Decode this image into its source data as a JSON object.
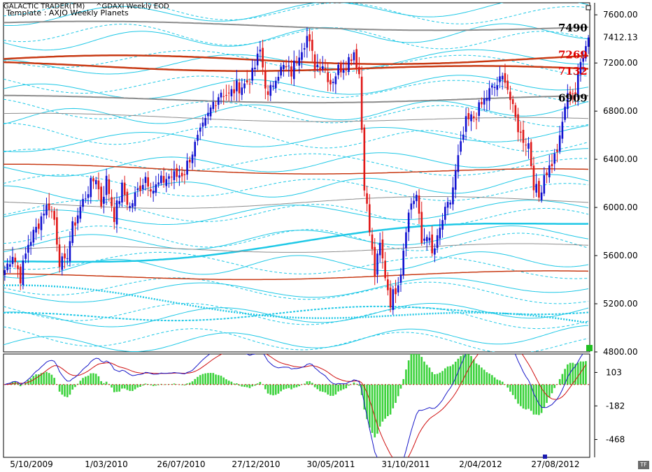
{
  "header": {
    "app_name": "GALACTIC TRADER(TM)",
    "symbol": "^GDAXI Weekly EOD",
    "template": "Template : AXJO Weekly Planets"
  },
  "tf_badge": "TF",
  "colors": {
    "up_candle": "#1010d0",
    "down_candle": "#e01818",
    "planet_cyan": "#1ec8e6",
    "planet_red": "#c83a14",
    "planet_gray": "#8c8c8c",
    "macd_line": "#1818c8",
    "signal_line": "#d01010",
    "histogram": "#3cd23c",
    "marker": "#20c020"
  },
  "levels": [
    {
      "value": 7490,
      "label": "7490",
      "color": "#000000"
    },
    {
      "value": 7269,
      "label": "7269",
      "color": "#e00000"
    },
    {
      "value": 7132,
      "label": "7132",
      "color": "#e00000"
    },
    {
      "value": 6909,
      "label": "6909",
      "color": "#000000"
    }
  ],
  "last_price": "7412.13",
  "chart_data": [
    {
      "type": "candlestick",
      "panel": "price",
      "y_ticks": [
        "7600.00",
        "7200.00",
        "6800.00",
        "6400.00",
        "6000.00",
        "5600.00",
        "5200.00",
        "4800.00"
      ],
      "ylim": [
        4800,
        7700
      ],
      "x_ticks": [
        "5/10/2009",
        "1/03/2010",
        "26/07/2010",
        "27/12/2010",
        "30/05/2011",
        "31/10/2011",
        "2/04/2012",
        "27/08/2012"
      ],
      "waypoints": [
        [
          0,
          5480
        ],
        [
          3,
          5620
        ],
        [
          6,
          5420
        ],
        [
          9,
          5700
        ],
        [
          12,
          5820
        ],
        [
          15,
          5980
        ],
        [
          17,
          6020
        ],
        [
          19,
          5900
        ],
        [
          21,
          5560
        ],
        [
          23,
          5520
        ],
        [
          26,
          5830
        ],
        [
          29,
          6000
        ],
        [
          32,
          6150
        ],
        [
          35,
          6260
        ],
        [
          37,
          6030
        ],
        [
          39,
          6230
        ],
        [
          42,
          5930
        ],
        [
          45,
          6160
        ],
        [
          48,
          6000
        ],
        [
          51,
          6140
        ],
        [
          54,
          6260
        ],
        [
          57,
          6150
        ],
        [
          60,
          6210
        ],
        [
          63,
          6260
        ],
        [
          66,
          6260
        ],
        [
          69,
          6300
        ],
        [
          71,
          6420
        ],
        [
          74,
          6560
        ],
        [
          77,
          6700
        ],
        [
          80,
          6870
        ],
        [
          83,
          6970
        ],
        [
          86,
          6930
        ],
        [
          89,
          7000
        ],
        [
          92,
          7020
        ],
        [
          95,
          7100
        ],
        [
          98,
          7300
        ],
        [
          101,
          6900
        ],
        [
          104,
          7110
        ],
        [
          107,
          7160
        ],
        [
          110,
          7120
        ],
        [
          113,
          7300
        ],
        [
          116,
          7420
        ],
        [
          119,
          7180
        ],
        [
          122,
          7200
        ],
        [
          125,
          7040
        ],
        [
          128,
          7150
        ],
        [
          131,
          7200
        ],
        [
          134,
          7300
        ],
        [
          136,
          7110
        ],
        [
          138,
          6200
        ],
        [
          140,
          5800
        ],
        [
          142,
          5450
        ],
        [
          144,
          5680
        ],
        [
          146,
          5440
        ],
        [
          148,
          5220
        ],
        [
          150,
          5330
        ],
        [
          152,
          5480
        ],
        [
          154,
          5850
        ],
        [
          156,
          6040
        ],
        [
          158,
          6100
        ],
        [
          160,
          5700
        ],
        [
          162,
          5800
        ],
        [
          164,
          5600
        ],
        [
          166,
          5720
        ],
        [
          168,
          5900
        ],
        [
          171,
          6050
        ],
        [
          174,
          6400
        ],
        [
          177,
          6700
        ],
        [
          180,
          6750
        ],
        [
          183,
          6850
        ],
        [
          186,
          6960
        ],
        [
          189,
          7020
        ],
        [
          192,
          7090
        ],
        [
          195,
          6800
        ],
        [
          198,
          6600
        ],
        [
          201,
          6530
        ],
        [
          203,
          6200
        ],
        [
          205,
          6080
        ],
        [
          207,
          6280
        ],
        [
          209,
          6330
        ],
        [
          211,
          6420
        ],
        [
          213,
          6550
        ],
        [
          215,
          6850
        ],
        [
          217,
          6970
        ],
        [
          219,
          6950
        ],
        [
          221,
          7200
        ],
        [
          223,
          7380
        ],
        [
          224,
          7412
        ]
      ]
    },
    {
      "type": "macd",
      "panel": "oscillator",
      "y_ticks": [
        "103",
        "-182",
        "-468"
      ],
      "ylim": [
        -620,
        260
      ]
    }
  ]
}
